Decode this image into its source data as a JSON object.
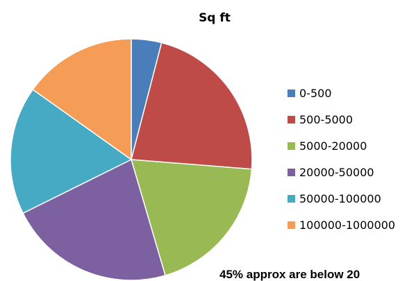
{
  "chart_data": {
    "type": "pie",
    "title": "Sq ft",
    "categories": [
      "0-500",
      "500-5000",
      "5000-20000",
      "20000-50000",
      "50000-100000",
      "100000-1000000"
    ],
    "values": [
      4,
      22,
      19,
      22,
      17,
      15
    ],
    "colors": [
      "#4a7ebb",
      "#be4b48",
      "#98b954",
      "#7d60a0",
      "#46aac5",
      "#f59d56"
    ],
    "legend_position": "right",
    "start_angle_deg": 0,
    "direction": "clockwise",
    "annotation": "45% approx are below 20"
  }
}
